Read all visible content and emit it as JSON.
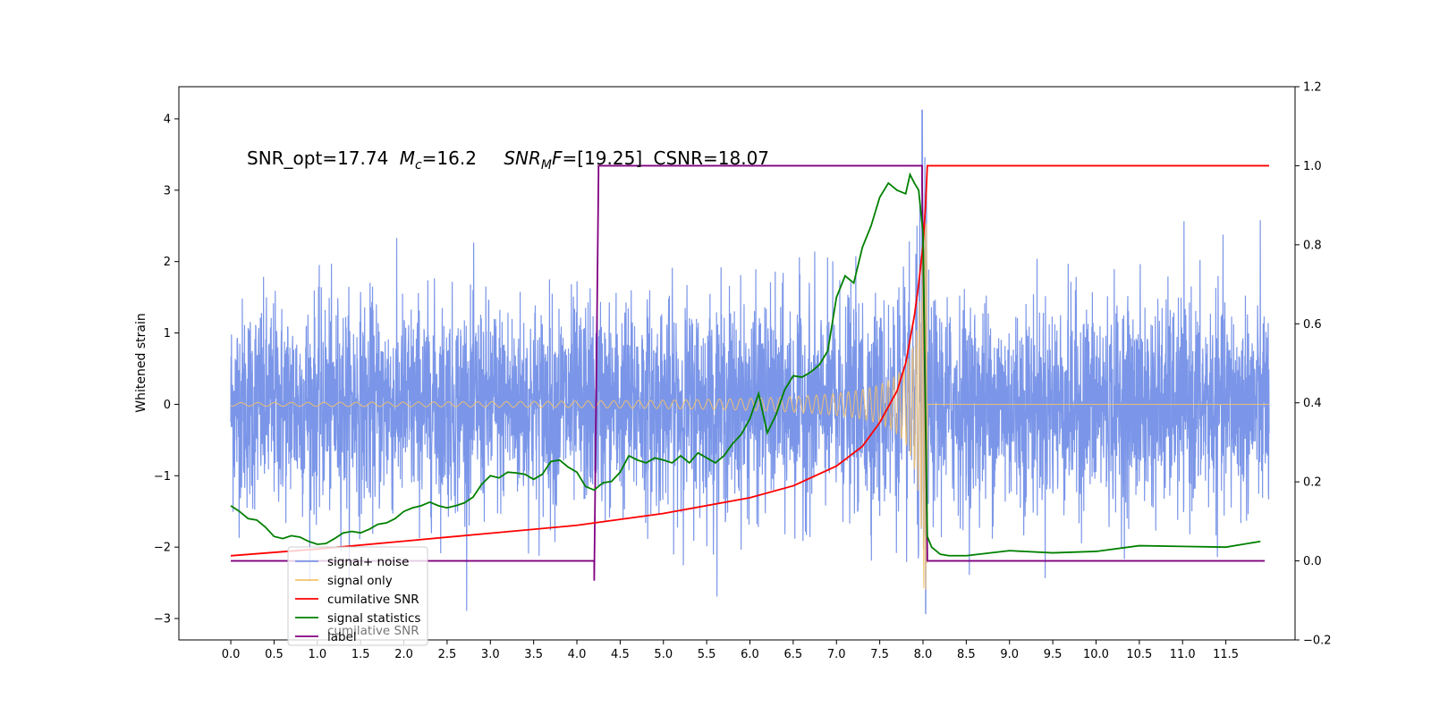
{
  "chart_data": {
    "type": "line",
    "ylabel_left": "Whitened strain",
    "annotation": "SNR_opt=17.74 M_c=16.2    SNR_MF=[19.25] CSNR=18.07",
    "annotation_parts": {
      "snr_opt": "SNR_opt=17.74",
      "mc_symbol": "M",
      "mc_sub": "c",
      "mc_value": "=16.2",
      "snr_mf_symbol": "SNR",
      "snr_mf_sub": "M",
      "snr_mf_f": "F",
      "snr_mf_value": "=[19.25]",
      "csnr": "CSNR=18.07"
    },
    "x_ticks": [
      "0.0",
      "0.5",
      "1.0",
      "1.5",
      "2.0",
      "2.5",
      "3.0",
      "3.5",
      "4.0",
      "4.5",
      "5.0",
      "5.5",
      "6.0",
      "6.5",
      "7.0",
      "7.5",
      "8.0",
      "8.5",
      "9.0",
      "9.5",
      "10.0",
      "10.5",
      "11.0",
      "11.5"
    ],
    "y_left_ticks": [
      "−3",
      "−2",
      "−1",
      "0",
      "1",
      "2",
      "3",
      "4"
    ],
    "y_right_ticks": [
      "−0.2",
      "0.0",
      "0.2",
      "0.4",
      "0.6",
      "0.8",
      "1.0",
      "1.2"
    ],
    "xlim": [
      -0.6,
      12.3
    ],
    "ylim_left": [
      -3.3,
      4.45
    ],
    "ylim_right": [
      -0.2,
      1.2
    ],
    "legend_position": "lower-left",
    "legend": [
      {
        "label": "signal+ noise",
        "color": "#7b96e8"
      },
      {
        "label": "signal only",
        "color": "#f5c26b"
      },
      {
        "label": "cumilative SNR",
        "color": "#ff0000"
      },
      {
        "label": "signal statistics",
        "color": "#008000"
      },
      {
        "label": "label",
        "color": "#800080"
      }
    ],
    "legend_overlap_text": "cumilative SNR",
    "series": [
      {
        "name": "signal+ noise",
        "axis": "left",
        "x_range": [
          0.0,
          12.0
        ],
        "approx_amplitude": 1.0,
        "peak": {
          "x": 7.99,
          "y": 4.12
        }
      },
      {
        "name": "signal only",
        "axis": "left",
        "x_range": [
          0.0,
          12.0
        ],
        "chirp_end": 8.05,
        "max_amplitude": 2.6
      },
      {
        "name": "cumilative SNR",
        "axis": "right",
        "x": [
          0.0,
          1.0,
          2.0,
          3.0,
          4.0,
          5.0,
          6.0,
          6.5,
          7.0,
          7.3,
          7.5,
          7.7,
          7.8,
          7.9,
          7.95,
          8.0,
          8.03,
          8.05,
          12.0
        ],
        "y": [
          0.013,
          0.03,
          0.05,
          0.07,
          0.09,
          0.12,
          0.16,
          0.19,
          0.24,
          0.29,
          0.35,
          0.43,
          0.5,
          0.62,
          0.7,
          0.8,
          0.9,
          1.0,
          1.0
        ]
      },
      {
        "name": "signal statistics",
        "axis": "left",
        "x": [
          0.0,
          0.1,
          0.2,
          0.3,
          0.4,
          0.5,
          0.6,
          0.7,
          0.8,
          0.9,
          1.0,
          1.1,
          1.2,
          1.3,
          1.4,
          1.5,
          1.6,
          1.7,
          1.8,
          1.9,
          2.0,
          2.1,
          2.2,
          2.3,
          2.4,
          2.5,
          2.6,
          2.7,
          2.8,
          2.9,
          3.0,
          3.1,
          3.2,
          3.3,
          3.4,
          3.5,
          3.6,
          3.7,
          3.8,
          3.9,
          4.0,
          4.1,
          4.2,
          4.3,
          4.4,
          4.5,
          4.6,
          4.7,
          4.8,
          4.9,
          5.0,
          5.1,
          5.2,
          5.3,
          5.4,
          5.5,
          5.6,
          5.7,
          5.8,
          5.9,
          6.0,
          6.1,
          6.2,
          6.3,
          6.4,
          6.5,
          6.6,
          6.7,
          6.8,
          6.9,
          7.0,
          7.1,
          7.2,
          7.3,
          7.4,
          7.5,
          7.6,
          7.7,
          7.8,
          7.85,
          7.9,
          7.95,
          8.0,
          8.05,
          8.1,
          8.2,
          8.3,
          8.5,
          9.0,
          9.5,
          10.0,
          10.5,
          11.0,
          11.5,
          11.9
        ],
        "y": [
          -1.42,
          -1.5,
          -1.6,
          -1.62,
          -1.72,
          -1.85,
          -1.88,
          -1.84,
          -1.86,
          -1.92,
          -1.96,
          -1.95,
          -1.88,
          -1.8,
          -1.78,
          -1.8,
          -1.75,
          -1.68,
          -1.66,
          -1.6,
          -1.5,
          -1.45,
          -1.42,
          -1.37,
          -1.42,
          -1.45,
          -1.42,
          -1.38,
          -1.3,
          -1.12,
          -1.0,
          -1.03,
          -0.95,
          -0.96,
          -0.98,
          -1.05,
          -0.98,
          -0.8,
          -0.78,
          -0.88,
          -0.95,
          -1.15,
          -1.2,
          -1.1,
          -1.08,
          -0.95,
          -0.72,
          -0.78,
          -0.82,
          -0.75,
          -0.78,
          -0.82,
          -0.72,
          -0.82,
          -0.68,
          -0.75,
          -0.82,
          -0.72,
          -0.55,
          -0.42,
          -0.2,
          0.15,
          -0.4,
          -0.15,
          0.2,
          0.4,
          0.38,
          0.45,
          0.55,
          0.75,
          1.5,
          1.8,
          1.7,
          2.2,
          2.5,
          2.9,
          3.1,
          3.0,
          2.95,
          3.22,
          3.1,
          3.0,
          2.4,
          -1.85,
          -2.0,
          -2.1,
          -2.12,
          -2.12,
          -2.05,
          -2.08,
          -2.06,
          -1.98,
          -1.99,
          -2.0,
          -1.92
        ]
      },
      {
        "name": "label",
        "axis": "right",
        "x": [
          0.0,
          4.2,
          4.2,
          4.25,
          4.25,
          7.99,
          7.99,
          8.05,
          8.05,
          11.95
        ],
        "y": [
          0.0,
          0.0,
          -0.05,
          0.98,
          1.0,
          1.0,
          0.95,
          0.02,
          0.0,
          0.0
        ]
      }
    ]
  }
}
